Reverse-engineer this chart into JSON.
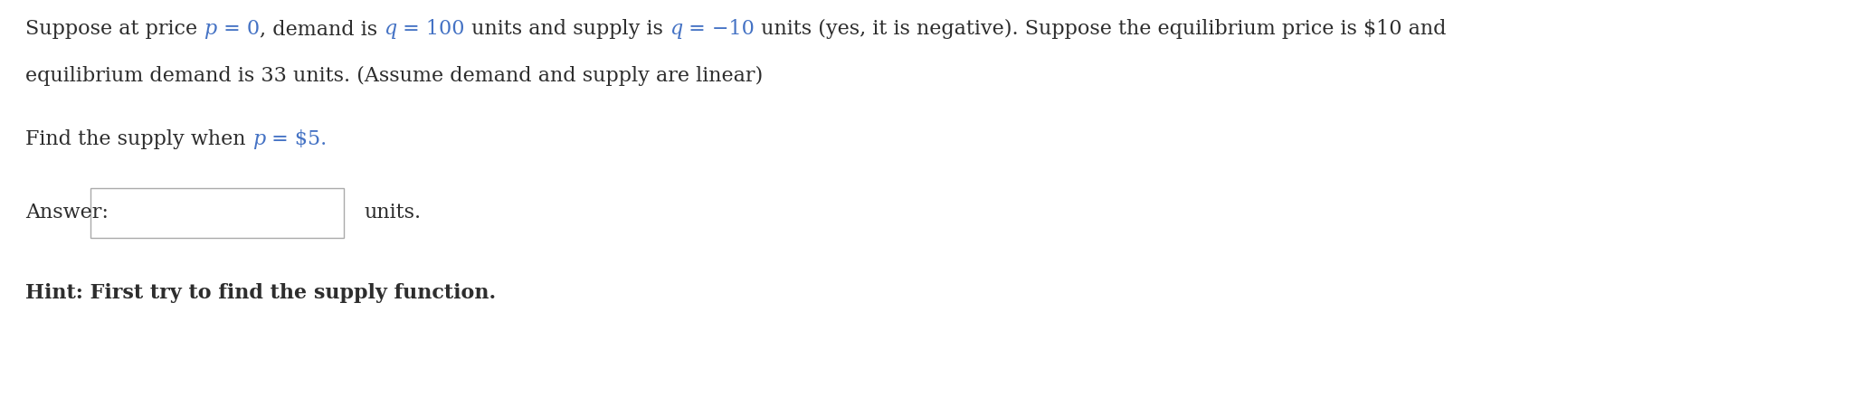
{
  "background_color": "#ffffff",
  "line1_parts": [
    {
      "text": "Suppose at price ",
      "style": "normal",
      "weight": "normal",
      "color": "#2d2d2d"
    },
    {
      "text": "p",
      "style": "italic",
      "weight": "normal",
      "color": "#4472c4"
    },
    {
      "text": " = 0",
      "style": "normal",
      "weight": "normal",
      "color": "#4472c4"
    },
    {
      "text": ", demand is ",
      "style": "normal",
      "weight": "normal",
      "color": "#2d2d2d"
    },
    {
      "text": "q",
      "style": "italic",
      "weight": "normal",
      "color": "#4472c4"
    },
    {
      "text": " = 100",
      "style": "normal",
      "weight": "normal",
      "color": "#4472c4"
    },
    {
      "text": " units and supply is ",
      "style": "normal",
      "weight": "normal",
      "color": "#2d2d2d"
    },
    {
      "text": "q",
      "style": "italic",
      "weight": "normal",
      "color": "#4472c4"
    },
    {
      "text": " = −10",
      "style": "normal",
      "weight": "normal",
      "color": "#4472c4"
    },
    {
      "text": " units (yes, it is negative). Suppose the equilibrium price is $10 and",
      "style": "normal",
      "weight": "normal",
      "color": "#2d2d2d"
    }
  ],
  "line2": "equilibrium demand is 33 units. (Assume demand and supply are linear)",
  "line3_parts": [
    {
      "text": "Find the supply when ",
      "style": "normal",
      "weight": "normal",
      "color": "#2d2d2d"
    },
    {
      "text": "p",
      "style": "italic",
      "weight": "normal",
      "color": "#4472c4"
    },
    {
      "text": " = $5.",
      "style": "normal",
      "weight": "normal",
      "color": "#4472c4"
    }
  ],
  "answer_label": "Answer:",
  "units_label": "units.",
  "hint_text": "Hint: First try to find the supply function.",
  "font_size": 16,
  "hint_font_size": 16,
  "font_family": "serif"
}
